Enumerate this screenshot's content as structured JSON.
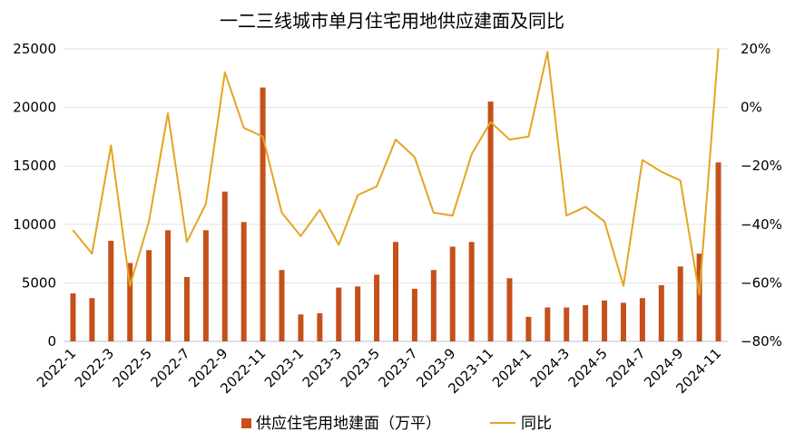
{
  "chart_data": {
    "type": "bar",
    "title": "一二三线城市单月住宅用地供应建面及同比",
    "categories": [
      "2022-1",
      "2022-2",
      "2022-3",
      "2022-4",
      "2022-5",
      "2022-6",
      "2022-7",
      "2022-8",
      "2022-9",
      "2022-10",
      "2022-11",
      "2022-12",
      "2023-1",
      "2023-2",
      "2023-3",
      "2023-4",
      "2023-5",
      "2023-6",
      "2023-7",
      "2023-8",
      "2023-9",
      "2023-10",
      "2023-11",
      "2023-12",
      "2024-1",
      "2024-2",
      "2024-3",
      "2024-4",
      "2024-5",
      "2024-6",
      "2024-7",
      "2024-8",
      "2024-9",
      "2024-10",
      "2024-11"
    ],
    "x_tick_labels": [
      "2022-1",
      "2022-3",
      "2022-5",
      "2022-7",
      "2022-9",
      "2022-11",
      "2023-1",
      "2023-3",
      "2023-5",
      "2023-7",
      "2023-9",
      "2023-11",
      "2024-1",
      "2024-3",
      "2024-5",
      "2024-7",
      "2024-9",
      "2024-11"
    ],
    "series": [
      {
        "name": "供应住宅用地建面（万平）",
        "type": "bar",
        "axis": "left",
        "color": "#C5501B",
        "values": [
          4100,
          3700,
          8600,
          6700,
          7800,
          9500,
          5500,
          9500,
          12800,
          10200,
          21700,
          6100,
          2300,
          2400,
          4600,
          4700,
          5700,
          8500,
          4500,
          6100,
          8100,
          8500,
          20500,
          5400,
          2100,
          2900,
          2900,
          3100,
          3500,
          3300,
          3700,
          4800,
          6400,
          7500,
          15300
        ]
      },
      {
        "name": "同比",
        "type": "line",
        "axis": "right",
        "color": "#E5A420",
        "values": [
          -42,
          -50,
          -13,
          -61,
          -39,
          -2,
          -46,
          -33,
          12,
          -7,
          -10,
          -36,
          -44,
          -35,
          -47,
          -30,
          -27,
          -11,
          -17,
          -36,
          -37,
          -16,
          -5,
          -11,
          -10,
          19,
          -37,
          -34,
          -39,
          -61,
          -18,
          -22,
          -25,
          -64,
          20
        ]
      }
    ],
    "y_left": {
      "min": 0,
      "max": 25000,
      "ticks": [
        0,
        5000,
        10000,
        15000,
        20000,
        25000
      ],
      "tick_labels": [
        "0",
        "5000",
        "10000",
        "15000",
        "20000",
        "25000"
      ]
    },
    "y_right": {
      "min": -80,
      "max": 20,
      "ticks": [
        -80,
        -60,
        -40,
        -20,
        0,
        20
      ],
      "tick_labels": [
        "−80%",
        "−60%",
        "−40%",
        "−20%",
        "0%",
        "20%"
      ]
    },
    "grid": true,
    "legend_position": "bottom"
  }
}
